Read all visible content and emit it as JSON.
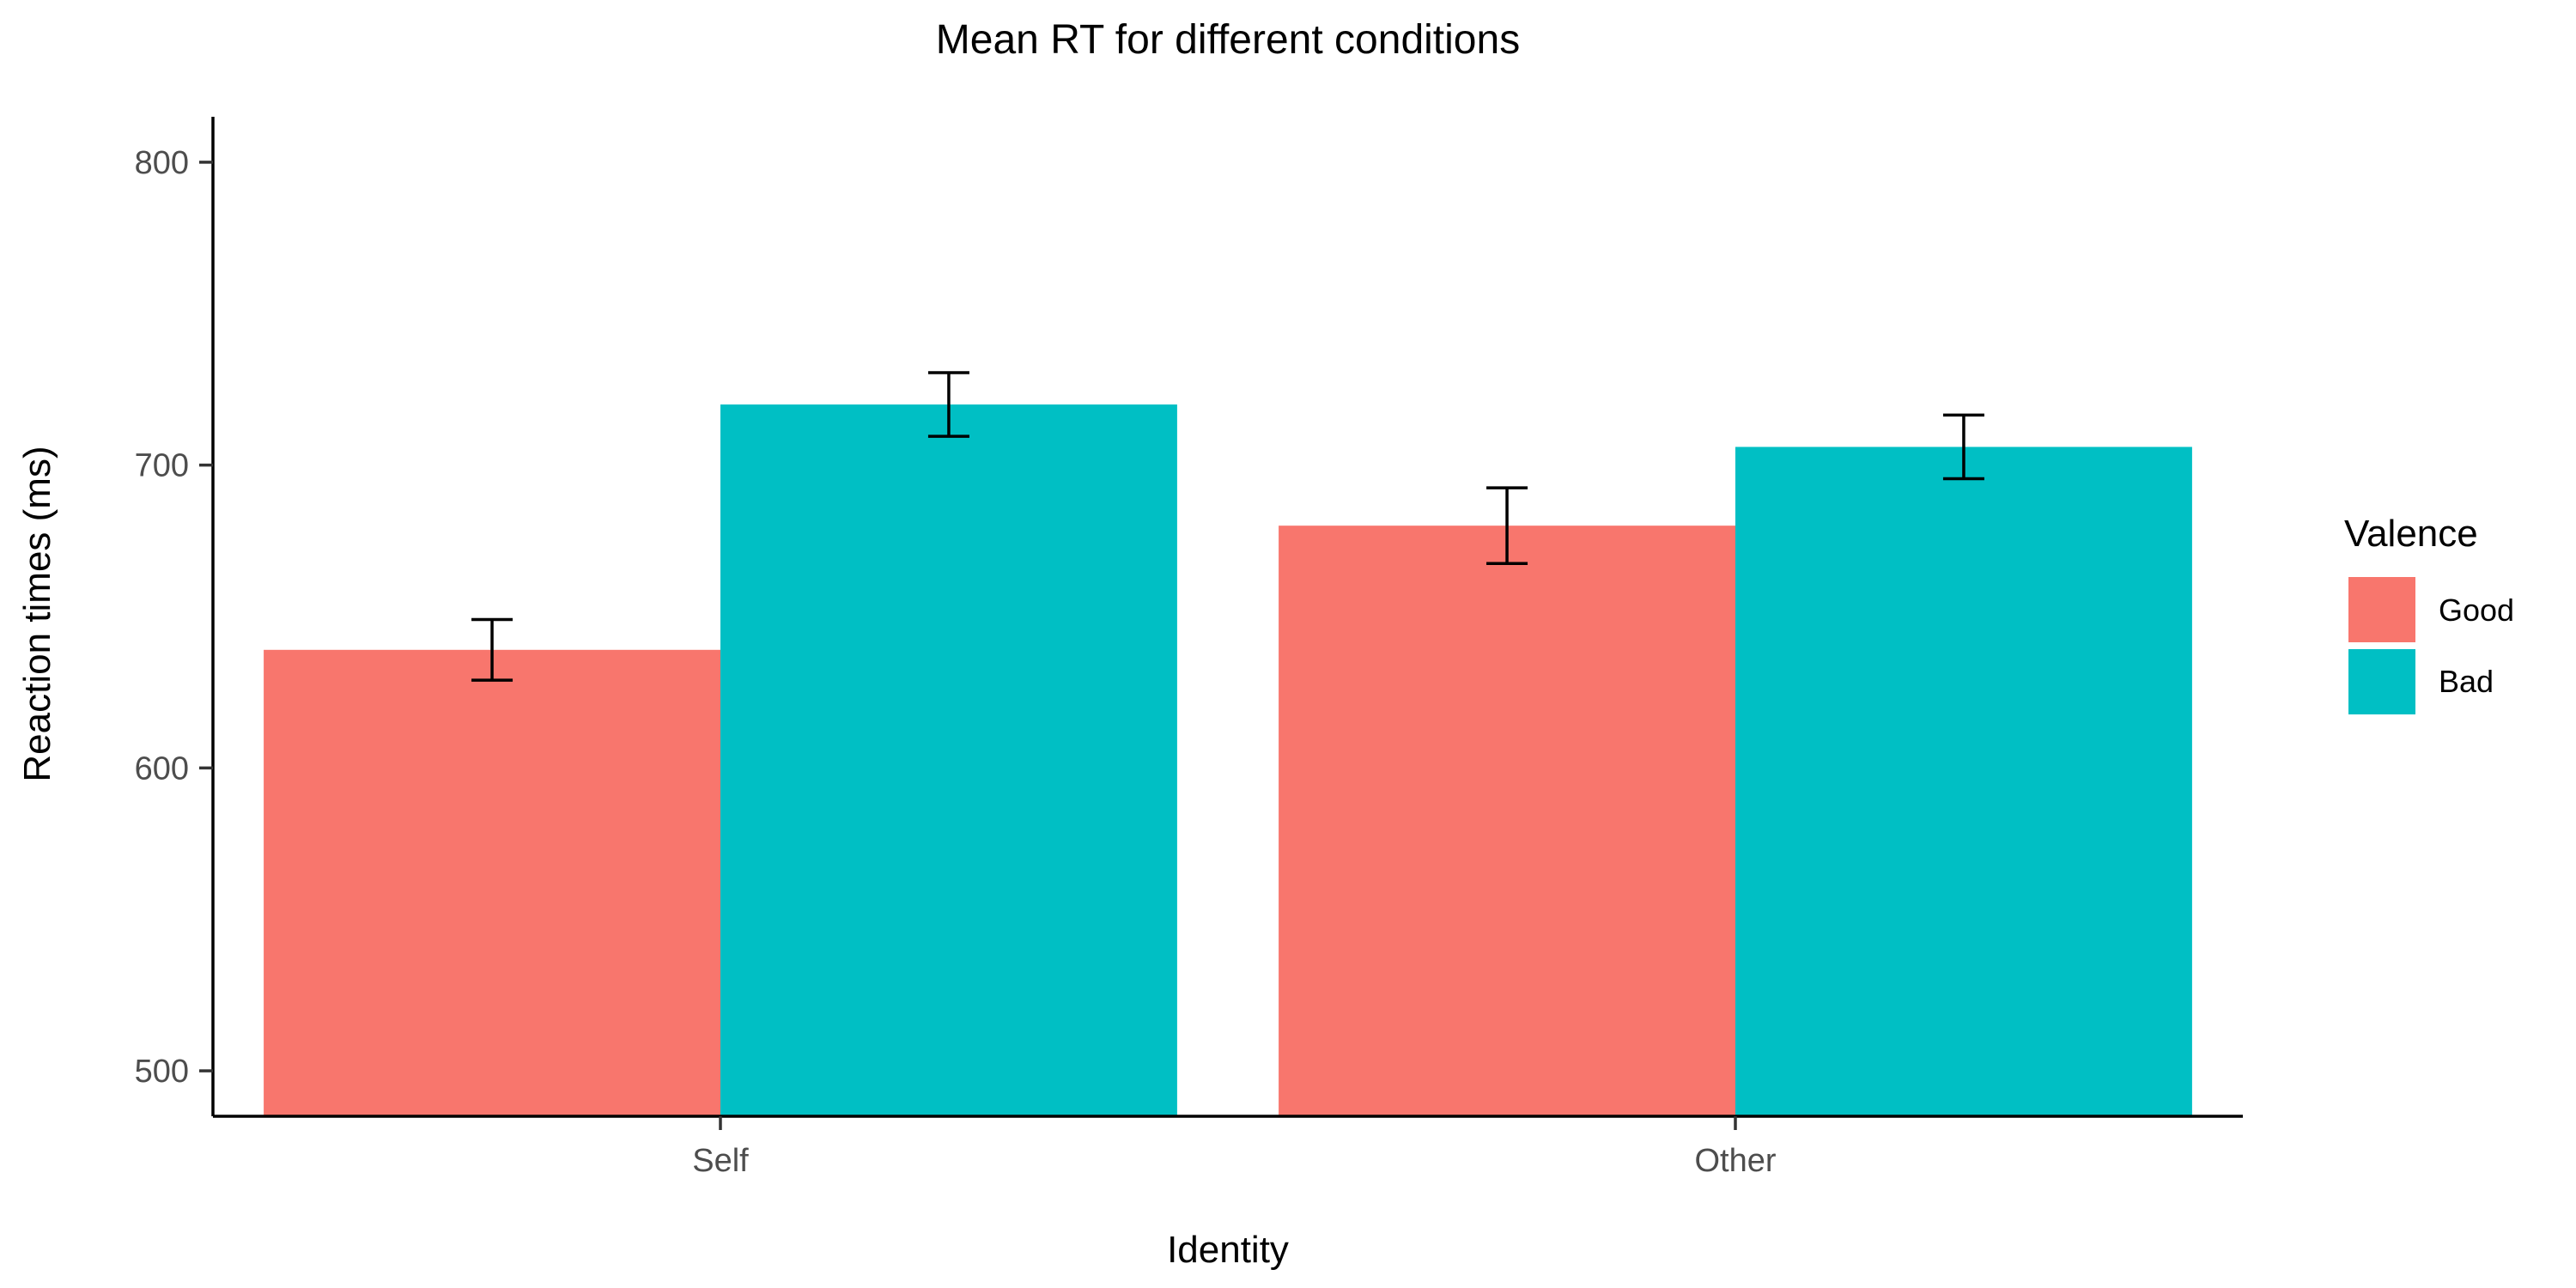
{
  "chart_data": {
    "type": "bar",
    "title": "Mean RT for different conditions",
    "xlabel": "Identity",
    "ylabel": "Reaction times (ms)",
    "categories": [
      "Self",
      "Other"
    ],
    "series": [
      {
        "name": "Good",
        "color": "#F8766D",
        "values": [
          639,
          680
        ],
        "error": [
          10,
          12.5
        ]
      },
      {
        "name": "Bad",
        "color": "#00BFC4",
        "values": [
          720,
          706
        ],
        "error": [
          10.5,
          10.5
        ]
      }
    ],
    "ylim": [
      485,
      815
    ],
    "yticks": [
      500,
      600,
      700,
      800
    ],
    "grid": false,
    "legend": {
      "title": "Valence",
      "position": "right"
    }
  }
}
